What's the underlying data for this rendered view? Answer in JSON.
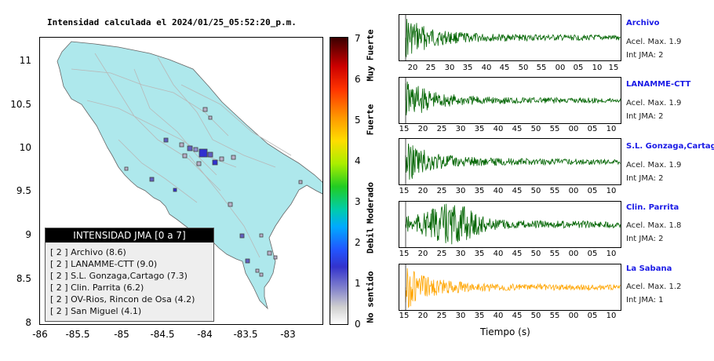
{
  "map": {
    "title": "Intensidad calculada el 2024/01/25_05:52:20_p.m.",
    "y_ticks": [
      "11",
      "10.5",
      "10",
      "9.5",
      "9",
      "8.5",
      "8"
    ],
    "x_ticks": [
      "-86",
      "-85.5",
      "-85",
      "-84.5",
      "-84",
      "-83.5",
      "-83"
    ],
    "land_color": "#aee8ec",
    "legend": {
      "title": "INTENSIDAD JMA [0 a 7]",
      "entries": [
        "[ 2 ] Archivo (8.6)",
        "[ 2 ] LANAMME-CTT (9.0)",
        "[ 2 ] S.L. Gonzaga,Cartago (7.3)",
        "[ 2 ] Clin. Parrita (6.2)",
        "[ 2 ] OV-Rios, Rincon de Osa (4.2)",
        "[ 2 ] San Miguel (4.1)"
      ]
    }
  },
  "colorbar": {
    "ticks": [
      "7",
      "6",
      "5",
      "4",
      "3",
      "2",
      "1",
      "0"
    ],
    "categories": [
      "Muy Fuerte",
      "Fuerte",
      "Moderado",
      "Debil",
      "No sentido"
    ]
  },
  "stations": [
    {
      "name": "Archivo",
      "acel": "Acel. Max. 1.9",
      "int": "Int JMA: 2",
      "color": "#006400",
      "ticks": [
        "20",
        "25",
        "30",
        "35",
        "40",
        "45",
        "50",
        "55",
        "00",
        "05",
        "10",
        "15"
      ]
    },
    {
      "name": "LANAMME-CTT",
      "acel": "Acel. Max. 1.9",
      "int": "Int JMA: 2",
      "color": "#006400",
      "ticks": [
        "15",
        "20",
        "25",
        "30",
        "35",
        "40",
        "45",
        "50",
        "55",
        "00",
        "05",
        "10"
      ]
    },
    {
      "name": "S.L. Gonzaga,Cartago",
      "acel": "Acel. Max. 1.9",
      "int": "Int JMA: 2",
      "color": "#006400",
      "ticks": [
        "15",
        "20",
        "25",
        "30",
        "35",
        "40",
        "45",
        "50",
        "55",
        "00",
        "05",
        "10"
      ]
    },
    {
      "name": "Clin. Parrita",
      "acel": "Acel. Max. 1.8",
      "int": "Int JMA: 2",
      "color": "#006400",
      "ticks": [
        "15",
        "20",
        "25",
        "30",
        "35",
        "40",
        "45",
        "50",
        "55",
        "00",
        "05",
        "10"
      ]
    },
    {
      "name": "La Sabana",
      "acel": "Acel. Max. 1.2",
      "int": "Int JMA: 1",
      "color": "#ffa500",
      "ticks": [
        "15",
        "20",
        "25",
        "30",
        "35",
        "40",
        "45",
        "50",
        "55",
        "00",
        "05",
        "10"
      ]
    }
  ],
  "xlabel": "Tiempo (s)"
}
